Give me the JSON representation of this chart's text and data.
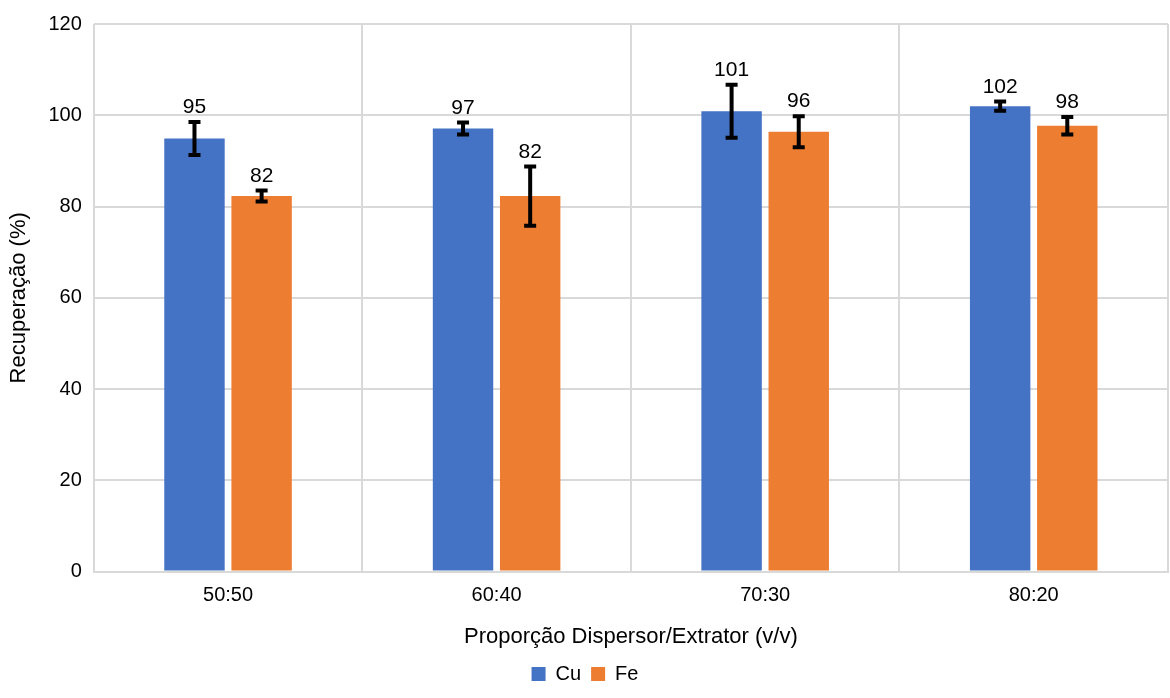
{
  "chart_data": {
    "type": "bar",
    "xlabel": "Proporção Dispersor/Extrator (v/v)",
    "ylabel": "Recuperação (%)",
    "categories": [
      "50:50",
      "60:40",
      "70:30",
      "80:20"
    ],
    "series": [
      {
        "name": "Cu",
        "color": "#4472c4",
        "values": [
          94.9,
          97.1,
          100.9,
          102.0
        ],
        "errors": [
          3.6,
          1.3,
          5.8,
          1.0
        ],
        "value_labels": [
          "95",
          "97",
          "101",
          "102"
        ]
      },
      {
        "name": "Fe",
        "color": "#ed7d31",
        "values": [
          82.3,
          82.3,
          96.4,
          97.7
        ],
        "errors": [
          1.2,
          6.5,
          3.4,
          1.9
        ],
        "value_labels": [
          "82",
          "82",
          "96",
          "98"
        ]
      }
    ],
    "ylim": [
      0,
      120
    ],
    "yticks": [
      0,
      20,
      40,
      60,
      80,
      100,
      120
    ],
    "grid": true,
    "legend": "bottom"
  }
}
